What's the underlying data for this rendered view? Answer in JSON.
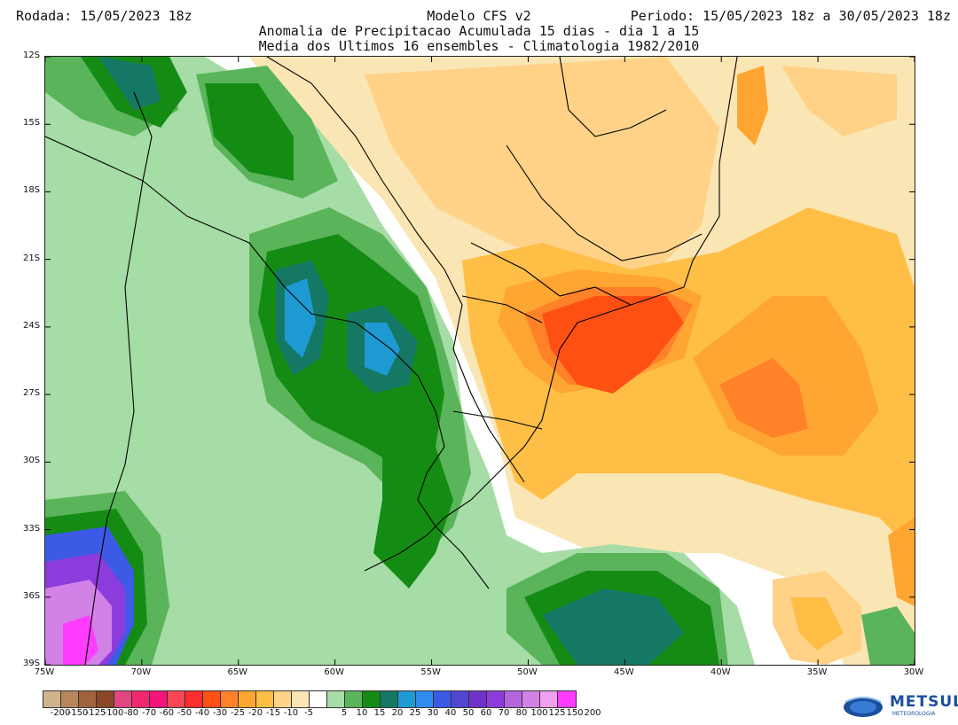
{
  "header": {
    "left": "Rodada: 15/05/2023 18z",
    "center_lines": [
      "Modelo CFS v2",
      "Anomalia de Precipitacao Acumulada 15 dias - dia 1 a 15",
      "Media dos Ultimos 16 ensembles - Climatologia 1982/2010"
    ],
    "right": "Periodo: 15/05/2023 18z a 30/05/2023 18z"
  },
  "map": {
    "lat_labels": [
      "12S",
      "15S",
      "18S",
      "21S",
      "24S",
      "27S",
      "30S",
      "33S",
      "36S",
      "39S"
    ],
    "lat_values": [
      -12,
      -15,
      -18,
      -21,
      -24,
      -27,
      -30,
      -33,
      -36,
      -39
    ],
    "lon_labels": [
      "75W",
      "70W",
      "65W",
      "60W",
      "55W",
      "50W",
      "45W",
      "40W",
      "35W",
      "30W"
    ],
    "lon_values": [
      -75,
      -70,
      -65,
      -60,
      -55,
      -50,
      -45,
      -40,
      -35,
      -30
    ]
  },
  "colorbar": {
    "labels": [
      "-200",
      "-150",
      "-125",
      "-100",
      "-80",
      "-70",
      "-60",
      "-50",
      "-40",
      "-30",
      "-25",
      "-20",
      "-15",
      "-10",
      "-5",
      "5",
      "10",
      "15",
      "20",
      "25",
      "30",
      "40",
      "50",
      "60",
      "70",
      "80",
      "100",
      "125",
      "150",
      "200"
    ],
    "colors": [
      "#d2b48c",
      "#b8865a",
      "#a0643c",
      "#8c4628",
      "#e14682",
      "#f0286e",
      "#f5147c",
      "#fa4650",
      "#ff2d2d",
      "#ff5014",
      "#ff8228",
      "#ffa532",
      "#ffbe46",
      "#ffd288",
      "#fae6b4",
      "#ffffff",
      "#a6dca6",
      "#5ab45a",
      "#148c14",
      "#147864",
      "#1e9ad2",
      "#328cf0",
      "#3c5ae6",
      "#5046d2",
      "#6e32c8",
      "#8c3cdc",
      "#b464dc",
      "#d282e6",
      "#f0a0f0",
      "#ff3cff"
    ]
  },
  "logo": {
    "name": "METSUL",
    "subtitle": "METEOROLOGIA"
  }
}
